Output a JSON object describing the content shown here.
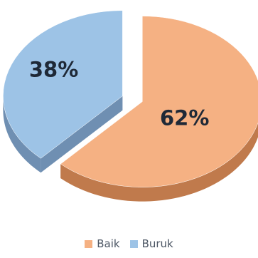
{
  "chart_data": {
    "type": "pie",
    "style": "3d-exploded",
    "categories": [
      "Baik",
      "Buruk"
    ],
    "values": [
      62,
      38
    ],
    "labels": [
      "62%",
      "38%"
    ],
    "colors": [
      "#f5b183",
      "#9dc3e6"
    ],
    "side_colors": [
      "#c07a4c",
      "#6f8fb2"
    ],
    "title": "",
    "legend_position": "bottom"
  },
  "legend": {
    "items": [
      {
        "label": "Baik",
        "color": "#f5b183"
      },
      {
        "label": "Buruk",
        "color": "#9dc3e6"
      }
    ]
  }
}
